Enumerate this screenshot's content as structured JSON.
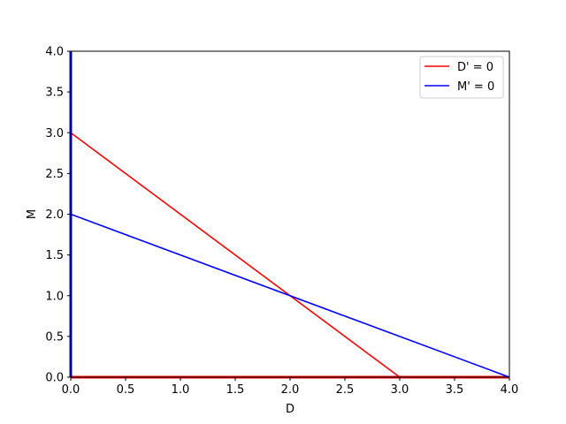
{
  "chart_data": {
    "type": "line",
    "xlabel": "D",
    "ylabel": "M",
    "xlim": [
      0,
      4
    ],
    "ylim": [
      0,
      4
    ],
    "xticks": [
      "0.0",
      "0.5",
      "1.0",
      "1.5",
      "2.0",
      "2.5",
      "3.0",
      "3.5",
      "4.0"
    ],
    "yticks": [
      "0.0",
      "0.5",
      "1.0",
      "1.5",
      "2.0",
      "2.5",
      "3.0",
      "3.5",
      "4.0"
    ],
    "grid": false,
    "legend_position": "upper-right",
    "legend": [
      "D' = 0",
      "M' = 0"
    ],
    "series": [
      {
        "name": "D' = 0",
        "color": "#ff0000",
        "points": [
          [
            0,
            3
          ],
          [
            3,
            0
          ]
        ]
      },
      {
        "name": "D' = 0",
        "color": "#ff0000",
        "points": [
          [
            0,
            0
          ],
          [
            4,
            0
          ]
        ]
      },
      {
        "name": "M' = 0",
        "color": "#0000ff",
        "points": [
          [
            0,
            2
          ],
          [
            4,
            0
          ]
        ]
      },
      {
        "name": "M' = 0",
        "color": "#0000ff",
        "points": [
          [
            0,
            0
          ],
          [
            0,
            4
          ]
        ]
      }
    ]
  }
}
